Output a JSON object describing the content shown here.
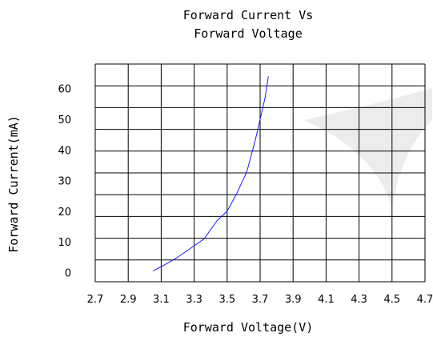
{
  "chart_data": {
    "type": "line",
    "title": [
      "Forward Current Vs",
      "Forward Voltage"
    ],
    "xlabel": "Forward Voltage(V)",
    "ylabel": "Forward Current(mA)",
    "xlim": [
      2.7,
      4.7
    ],
    "ylim": [
      -3,
      68
    ],
    "x_tick_labels": [
      "2.7",
      "2.9",
      "3.1",
      "3.3",
      "3.5",
      "3.7",
      "3.9",
      "4.1",
      "4.3",
      "4.5",
      "4.7"
    ],
    "y_tick_labels": [
      "0",
      "10",
      "20",
      "30",
      "40",
      "50",
      "60"
    ],
    "grid": true,
    "series": [
      {
        "color": "#1a1aff",
        "x": [
          3.05,
          3.12,
          3.2,
          3.28,
          3.36,
          3.44,
          3.5,
          3.56,
          3.62,
          3.67,
          3.7,
          3.73,
          3.75
        ],
        "y": [
          0.5,
          2.5,
          5,
          8,
          11,
          17,
          20,
          26,
          33,
          43,
          50,
          57,
          64
        ]
      }
    ]
  }
}
